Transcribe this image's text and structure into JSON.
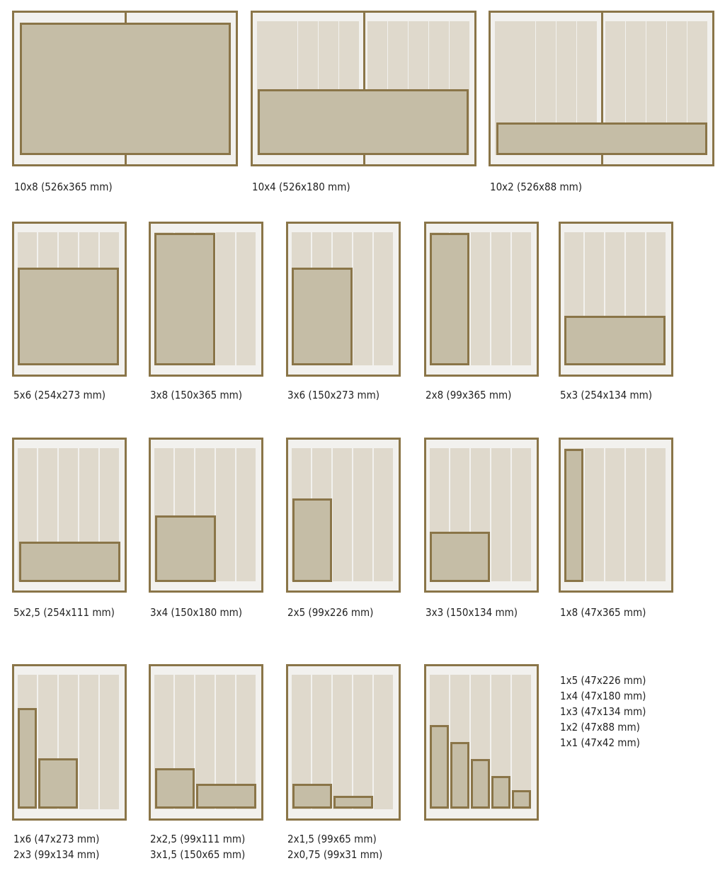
{
  "colors": {
    "frame_border": "#8a7548",
    "frame_bg": "#f2f1ee",
    "column": "#dfd9cc",
    "block": "#c5bda6",
    "text": "#222222"
  },
  "layouts": [
    {
      "id": "10x8",
      "captions": [
        "10x8 (526x365 mm)"
      ]
    },
    {
      "id": "10x4",
      "captions": [
        "10x4 (526x180 mm)"
      ]
    },
    {
      "id": "10x2",
      "captions": [
        "10x2 (526x88 mm)"
      ]
    },
    {
      "id": "5x6",
      "captions": [
        "5x6 (254x273 mm)"
      ]
    },
    {
      "id": "3x8",
      "captions": [
        "3x8 (150x365 mm)"
      ]
    },
    {
      "id": "3x6",
      "captions": [
        "3x6 (150x273 mm)"
      ]
    },
    {
      "id": "2x8",
      "captions": [
        "2x8 (99x365 mm)"
      ]
    },
    {
      "id": "5x3",
      "captions": [
        "5x3 (254x134 mm)"
      ]
    },
    {
      "id": "5x2,5",
      "captions": [
        "5x2,5 (254x111 mm)"
      ]
    },
    {
      "id": "3x4",
      "captions": [
        "3x4 (150x180 mm)"
      ]
    },
    {
      "id": "2x5",
      "captions": [
        "2x5 (99x226 mm)"
      ]
    },
    {
      "id": "3x3",
      "captions": [
        "3x3 (150x134 mm)"
      ]
    },
    {
      "id": "1x8",
      "captions": [
        "1x8 (47x365 mm)"
      ]
    },
    {
      "id": "1x6-2x3",
      "captions": [
        "1x6 (47x273 mm)",
        "2x3 (99x134 mm)"
      ]
    },
    {
      "id": "2x2,5-3x1,5",
      "captions": [
        "2x2,5 (99x111 mm)",
        "3x1,5 (150x65 mm)"
      ]
    },
    {
      "id": "2x1,5-2x0,75",
      "captions": [
        "2x1,5 (99x65 mm)",
        "2x0,75 (99x31 mm)"
      ]
    },
    {
      "id": "1x5-1x1",
      "captions": [
        "1x5 (47x226 mm)",
        "1x4 (47x180 mm)",
        "1x3 (47x134 mm)",
        "1x2 (47x88 mm)",
        "1x1 (47x42 mm)"
      ]
    }
  ]
}
